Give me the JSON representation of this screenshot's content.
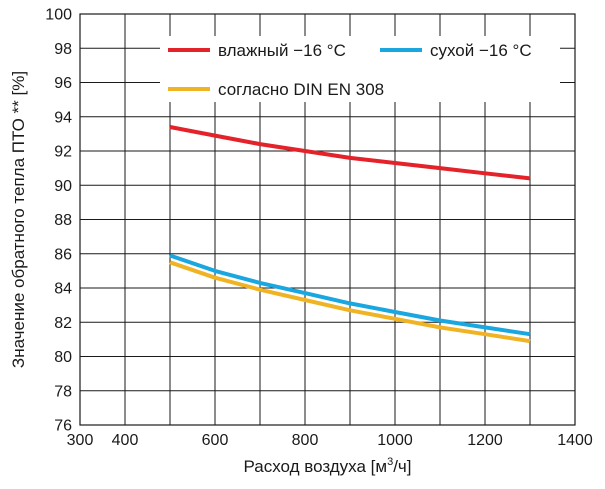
{
  "chart_data": {
    "type": "line",
    "xlabel": "Расход воздуха [м",
    "xlabel_sup": "3",
    "xlabel_tail": "/ч]",
    "ylabel": "Значение обратного тепла ПТО ** [%]",
    "xlim": [
      300,
      1400
    ],
    "ylim": [
      76,
      100
    ],
    "x_ticks": [
      300,
      400,
      600,
      800,
      1000,
      1200,
      1400
    ],
    "y_ticks": [
      76,
      78,
      80,
      82,
      84,
      86,
      88,
      90,
      92,
      94,
      96,
      98,
      100
    ],
    "x_grid": [
      300,
      400,
      500,
      600,
      700,
      800,
      900,
      1000,
      1100,
      1200,
      1300,
      1400
    ],
    "grid": true,
    "legend_position": "top-right",
    "series": [
      {
        "name": "влажный −16 °C",
        "color": "#e3222a",
        "x": [
          500,
          600,
          700,
          800,
          900,
          1000,
          1100,
          1200,
          1300
        ],
        "values": [
          93.4,
          92.9,
          92.4,
          92.0,
          91.6,
          91.3,
          91.0,
          90.7,
          90.4
        ]
      },
      {
        "name": "сухой −16 °C",
        "color": "#1aa7e0",
        "x": [
          500,
          600,
          700,
          800,
          900,
          1000,
          1100,
          1200,
          1300
        ],
        "values": [
          85.9,
          85.0,
          84.3,
          83.7,
          83.1,
          82.6,
          82.1,
          81.7,
          81.3
        ]
      },
      {
        "name": "согласно DIN EN 308",
        "color": "#f0b323",
        "x": [
          500,
          600,
          700,
          800,
          900,
          1000,
          1100,
          1200,
          1300
        ],
        "values": [
          85.5,
          84.6,
          83.9,
          83.3,
          82.7,
          82.2,
          81.7,
          81.3,
          80.9
        ]
      }
    ]
  }
}
